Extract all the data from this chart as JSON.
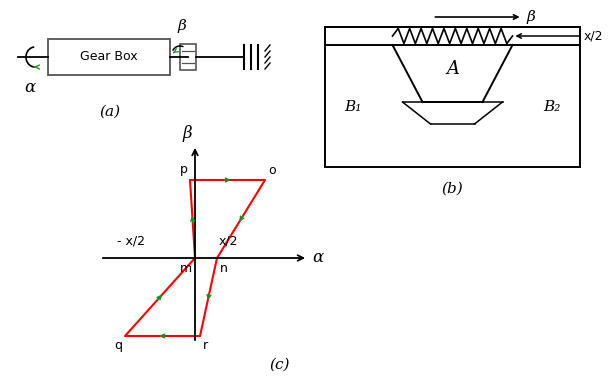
{
  "bg_color": "#ffffff",
  "panel_a": {
    "label": "(a)",
    "gearbox_text": "Gear Box",
    "alpha_label": "α",
    "beta_label": "β"
  },
  "panel_b": {
    "label": "(b)",
    "A_label": "A",
    "B1_label": "B₁",
    "B2_label": "B₂",
    "beta_label": "β",
    "x2_label": "x/2"
  },
  "panel_c": {
    "label": "(c)",
    "alpha_label": "α",
    "beta_label": "β",
    "x2_label": "x/2",
    "neg_x2_label": "- x/2",
    "p_label": "p",
    "o_label": "o",
    "m_label": "m",
    "n_label": "n",
    "q_label": "q",
    "r_label": "r"
  },
  "lc": "#000000",
  "rc": "#ff0000",
  "gc": "#228B22",
  "gray": "#555555"
}
